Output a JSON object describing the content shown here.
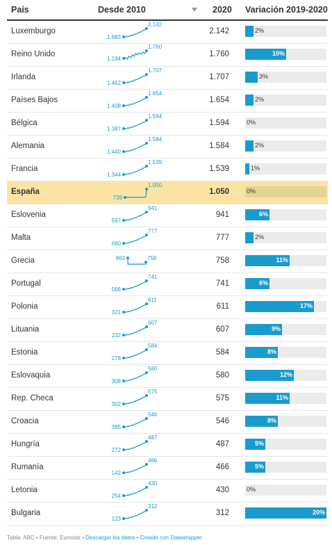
{
  "header": {
    "col_country": "País",
    "col_since": "Desde 2010",
    "col_2020": "2020",
    "col_variation": "Variación 2019-2020"
  },
  "chart_data": {
    "type": "table",
    "columns": [
      "País",
      "Desde 2010",
      "2020",
      "Variación 2019-2020"
    ],
    "highlight": "España",
    "accent_color": "#1a9bce",
    "highlight_color": "#fbe3a3",
    "rows": [
      {
        "country": "Luxemburgo",
        "first": 1683,
        "first_label": "1.683",
        "last": 2142,
        "last_label": "2.142",
        "value": "2.142",
        "var": 2,
        "var_label": "2%",
        "trend": "up"
      },
      {
        "country": "Reino Unido",
        "first": 1194,
        "first_label": "1.194",
        "last": 1760,
        "last_label": "1.760",
        "value": "1.760",
        "var": 10,
        "var_label": "10%",
        "trend": "volatile"
      },
      {
        "country": "Irlanda",
        "first": 1462,
        "first_label": "1.462",
        "last": 1707,
        "last_label": "1.707",
        "value": "1.707",
        "var": 3,
        "var_label": "3%",
        "trend": "up"
      },
      {
        "country": "Países Bajos",
        "first": 1408,
        "first_label": "1.408",
        "last": 1654,
        "last_label": "1.654",
        "value": "1.654",
        "var": 2,
        "var_label": "2%",
        "trend": "up"
      },
      {
        "country": "Bélgica",
        "first": 1387,
        "first_label": "1.387",
        "last": 1594,
        "last_label": "1.594",
        "value": "1.594",
        "var": 0,
        "var_label": "0%",
        "trend": "up"
      },
      {
        "country": "Alemania",
        "first": 1440,
        "first_label": "1.440",
        "last": 1584,
        "last_label": "1.584",
        "value": "1.584",
        "var": 2,
        "var_label": "2%",
        "trend": "up"
      },
      {
        "country": "Francia",
        "first": 1344,
        "first_label": "1.344",
        "last": 1539,
        "last_label": "1.539",
        "value": "1.539",
        "var": 1,
        "var_label": "1%",
        "trend": "up"
      },
      {
        "country": "España",
        "first": 739,
        "first_label": "739",
        "last": 1050,
        "last_label": "1.050",
        "value": "1.050",
        "var": 0,
        "var_label": "0%",
        "trend": "flat-jump"
      },
      {
        "country": "Eslovenia",
        "first": 597,
        "first_label": "597",
        "last": 941,
        "last_label": "941",
        "value": "941",
        "var": 6,
        "var_label": "6%",
        "trend": "up"
      },
      {
        "country": "Malta",
        "first": 660,
        "first_label": "660",
        "last": 777,
        "last_label": "777",
        "value": "777",
        "var": 2,
        "var_label": "2%",
        "trend": "up"
      },
      {
        "country": "Grecia",
        "first": 863,
        "first_label": "863",
        "last": 758,
        "last_label": "758",
        "value": "758",
        "var": 11,
        "var_label": "11%",
        "trend": "drop"
      },
      {
        "country": "Portugal",
        "first": 566,
        "first_label": "566",
        "last": 741,
        "last_label": "741",
        "value": "741",
        "var": 6,
        "var_label": "6%",
        "trend": "up"
      },
      {
        "country": "Polonia",
        "first": 321,
        "first_label": "321",
        "last": 611,
        "last_label": "611",
        "value": "611",
        "var": 17,
        "var_label": "17%",
        "trend": "up"
      },
      {
        "country": "Lituania",
        "first": 232,
        "first_label": "232",
        "last": 607,
        "last_label": "607",
        "value": "607",
        "var": 9,
        "var_label": "9%",
        "trend": "up"
      },
      {
        "country": "Estonia",
        "first": 278,
        "first_label": "278",
        "last": 584,
        "last_label": "584",
        "value": "584",
        "var": 8,
        "var_label": "8%",
        "trend": "up"
      },
      {
        "country": "Eslovaquia",
        "first": 308,
        "first_label": "308",
        "last": 580,
        "last_label": "580",
        "value": "580",
        "var": 12,
        "var_label": "12%",
        "trend": "up"
      },
      {
        "country": "Rep. Checa",
        "first": 302,
        "first_label": "302",
        "last": 575,
        "last_label": "575",
        "value": "575",
        "var": 11,
        "var_label": "11%",
        "trend": "up"
      },
      {
        "country": "Croacia",
        "first": 385,
        "first_label": "385",
        "last": 546,
        "last_label": "546",
        "value": "546",
        "var": 8,
        "var_label": "8%",
        "trend": "up"
      },
      {
        "country": "Hungría",
        "first": 272,
        "first_label": "272",
        "last": 487,
        "last_label": "487",
        "value": "487",
        "var": 5,
        "var_label": "5%",
        "trend": "up"
      },
      {
        "country": "Rumanía",
        "first": 142,
        "first_label": "142",
        "last": 466,
        "last_label": "466",
        "value": "466",
        "var": 5,
        "var_label": "5%",
        "trend": "up"
      },
      {
        "country": "Letonia",
        "first": 254,
        "first_label": "254",
        "last": 430,
        "last_label": "430",
        "value": "430",
        "var": 0,
        "var_label": "0%",
        "trend": "up"
      },
      {
        "country": "Bulgaria",
        "first": 123,
        "first_label": "123",
        "last": 312,
        "last_label": "312",
        "value": "312",
        "var": 20,
        "var_label": "20%",
        "trend": "up"
      }
    ],
    "var_max": 20
  },
  "footer": {
    "prefix": "Tabla: ABC • Fuente: Eurostat • ",
    "download": "Descargar los datos",
    "sep": " • ",
    "created": "Creado con Datawrapper"
  }
}
